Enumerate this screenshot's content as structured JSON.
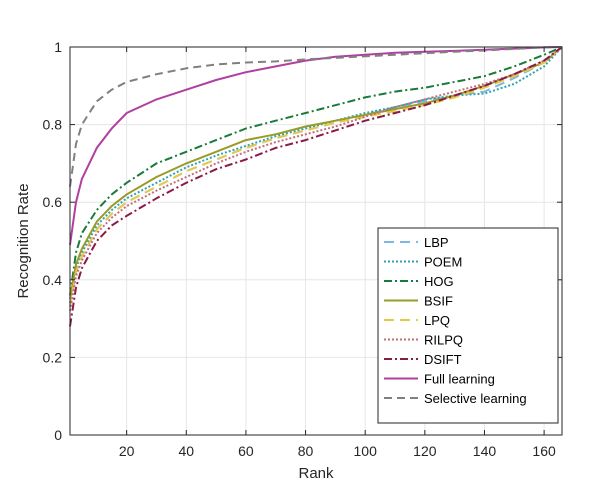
{
  "chart_data": {
    "type": "line",
    "xlabel": "Rank",
    "ylabel": "Recognition Rate",
    "xlim": [
      1,
      166
    ],
    "ylim": [
      0,
      1
    ],
    "xticks": [
      20,
      40,
      60,
      80,
      100,
      120,
      140,
      160
    ],
    "yticks": [
      0,
      0.2,
      0.4,
      0.6,
      0.8,
      1
    ],
    "ytick_labels": [
      "0",
      "0.2",
      "0.4",
      "0.6",
      "0.8",
      "1"
    ],
    "grid": true,
    "legend_position": "bottom-right",
    "x": [
      1,
      3,
      5,
      10,
      15,
      20,
      30,
      40,
      50,
      60,
      70,
      80,
      90,
      100,
      110,
      120,
      130,
      140,
      150,
      160,
      166
    ],
    "series": [
      {
        "name": "LBP",
        "color": "#7fb8e0",
        "dash": "10,6",
        "values": [
          0.33,
          0.42,
          0.46,
          0.53,
          0.57,
          0.6,
          0.64,
          0.68,
          0.71,
          0.74,
          0.765,
          0.785,
          0.805,
          0.825,
          0.845,
          0.86,
          0.875,
          0.885,
          0.92,
          0.96,
          1.0
        ]
      },
      {
        "name": "POEM",
        "color": "#2fa4b0",
        "dash": "2,2",
        "values": [
          0.34,
          0.43,
          0.47,
          0.54,
          0.58,
          0.61,
          0.65,
          0.69,
          0.72,
          0.745,
          0.77,
          0.79,
          0.81,
          0.83,
          0.845,
          0.865,
          0.875,
          0.88,
          0.905,
          0.95,
          1.0
        ]
      },
      {
        "name": "HOG",
        "color": "#1a7a3a",
        "dash": "8,3,2,3",
        "values": [
          0.36,
          0.47,
          0.52,
          0.58,
          0.62,
          0.65,
          0.7,
          0.73,
          0.76,
          0.79,
          0.81,
          0.83,
          0.85,
          0.87,
          0.885,
          0.895,
          0.91,
          0.925,
          0.95,
          0.98,
          1.0
        ]
      },
      {
        "name": "BSIF",
        "color": "#9a9a2a",
        "dash": "",
        "values": [
          0.35,
          0.44,
          0.48,
          0.55,
          0.59,
          0.62,
          0.665,
          0.7,
          0.73,
          0.76,
          0.775,
          0.795,
          0.81,
          0.825,
          0.84,
          0.855,
          0.875,
          0.9,
          0.93,
          0.96,
          1.0
        ]
      },
      {
        "name": "LPQ",
        "color": "#e8c84a",
        "dash": "10,6",
        "values": [
          0.33,
          0.42,
          0.46,
          0.53,
          0.57,
          0.6,
          0.64,
          0.68,
          0.71,
          0.74,
          0.765,
          0.785,
          0.805,
          0.82,
          0.835,
          0.85,
          0.87,
          0.895,
          0.925,
          0.96,
          1.0
        ]
      },
      {
        "name": "RILPQ",
        "color": "#c0707a",
        "dash": "2,2",
        "values": [
          0.32,
          0.41,
          0.45,
          0.52,
          0.56,
          0.59,
          0.63,
          0.665,
          0.7,
          0.73,
          0.755,
          0.775,
          0.795,
          0.82,
          0.845,
          0.865,
          0.885,
          0.905,
          0.93,
          0.965,
          1.0
        ]
      },
      {
        "name": "DSIFT",
        "color": "#8a1a4a",
        "dash": "8,3,2,3",
        "values": [
          0.28,
          0.38,
          0.43,
          0.5,
          0.54,
          0.565,
          0.61,
          0.65,
          0.685,
          0.71,
          0.74,
          0.76,
          0.785,
          0.81,
          0.83,
          0.85,
          0.875,
          0.9,
          0.93,
          0.965,
          1.0
        ]
      },
      {
        "name": "Full learning",
        "color": "#b040a0",
        "dash": "",
        "values": [
          0.49,
          0.6,
          0.66,
          0.74,
          0.79,
          0.83,
          0.865,
          0.89,
          0.915,
          0.935,
          0.95,
          0.965,
          0.975,
          0.98,
          0.985,
          0.988,
          0.99,
          0.993,
          0.996,
          0.999,
          1.0
        ]
      },
      {
        "name": "Selective learning",
        "color": "#808080",
        "dash": "8,5",
        "values": [
          0.64,
          0.75,
          0.8,
          0.86,
          0.89,
          0.91,
          0.93,
          0.945,
          0.955,
          0.96,
          0.963,
          0.968,
          0.972,
          0.976,
          0.98,
          0.984,
          0.988,
          0.991,
          0.995,
          0.999,
          1.0
        ]
      }
    ]
  }
}
